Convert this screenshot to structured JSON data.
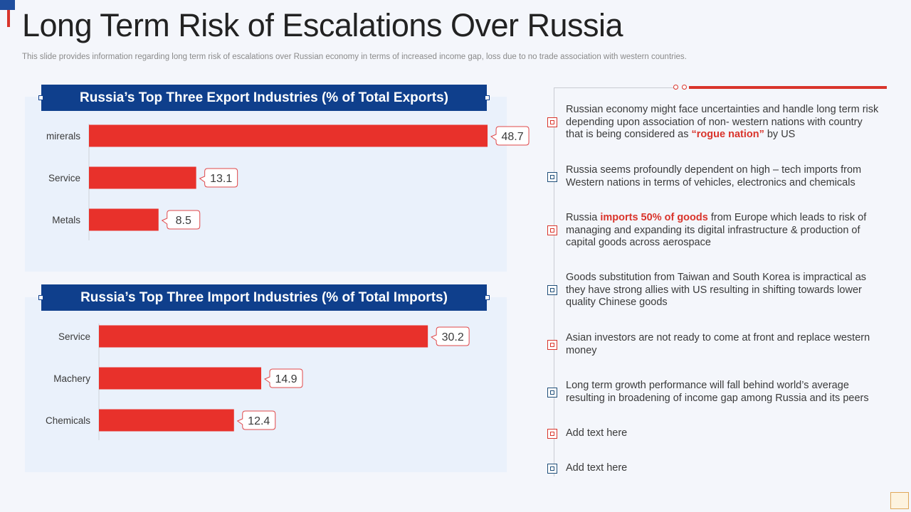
{
  "header": {
    "title": "Long Term Risk of Escalations Over Russia",
    "subtitle": "This slide provides information regarding long term risk of escalations over Russian economy in terms of increased income gap, loss due to no trade association with western countries."
  },
  "colors": {
    "accent_red": "#d9342b",
    "header_blue": "#0f3f8c",
    "bar_red": "#e8312b"
  },
  "chart_data": [
    {
      "type": "bar",
      "orientation": "horizontal",
      "title": "Russia’s Top Three Export Industries (% of Total Exports)",
      "categories": [
        "mirerals",
        "Service",
        "Metals"
      ],
      "values": [
        48.7,
        13.1,
        8.5
      ],
      "value_labels": [
        "48.7",
        "13.1",
        "8.5"
      ],
      "xlim": [
        0,
        50
      ],
      "grid": false,
      "legend": "none"
    },
    {
      "type": "bar",
      "orientation": "horizontal",
      "title": "Russia’s Top Three Import Industries (% of Total Imports)",
      "categories": [
        "Service",
        "Machery",
        "Chemicals"
      ],
      "values": [
        30.2,
        14.9,
        12.4
      ],
      "value_labels": [
        "30.2",
        "14.9",
        "12.4"
      ],
      "xlim": [
        0,
        33
      ],
      "grid": false,
      "legend": "none"
    }
  ],
  "points": [
    {
      "segments": [
        {
          "text": "Russian economy might face uncertainties and handle long term risk depending upon association of non- western nations with country that is being considered as "
        },
        {
          "text": "“rogue nation”",
          "highlight": true
        },
        {
          "text": " by US"
        }
      ],
      "bullet": "red"
    },
    {
      "segments": [
        {
          "text": "Russia seems profoundly dependent on high – tech imports from Western nations in terms of vehicles, electronics and chemicals"
        }
      ],
      "bullet": "blue"
    },
    {
      "segments": [
        {
          "text": "Russia "
        },
        {
          "text": "imports 50% of goods",
          "highlight": true
        },
        {
          "text": " from Europe which leads to risk of managing and expanding its digital infrastructure & production of capital goods across aerospace"
        }
      ],
      "bullet": "red"
    },
    {
      "segments": [
        {
          "text": "Goods substitution from Taiwan and South Korea is impractical as they have strong allies with US resulting in shifting towards lower quality Chinese goods"
        }
      ],
      "bullet": "blue"
    },
    {
      "segments": [
        {
          "text": "Asian investors are not ready to come at front and replace western money"
        }
      ],
      "bullet": "red"
    },
    {
      "segments": [
        {
          "text": "Long term growth performance will fall behind world’s average resulting in broadening of income gap among Russia and its peers"
        }
      ],
      "bullet": "blue"
    },
    {
      "segments": [
        {
          "text": "Add text here"
        }
      ],
      "bullet": "red"
    },
    {
      "segments": [
        {
          "text": "Add text here"
        }
      ],
      "bullet": "blue"
    }
  ]
}
